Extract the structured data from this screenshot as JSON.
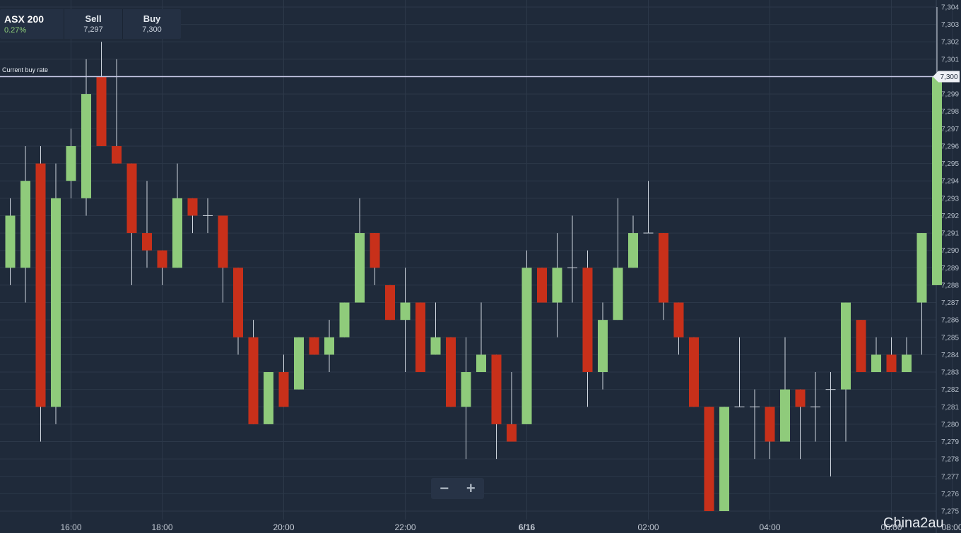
{
  "quote": {
    "instrument": "ASX 200",
    "change": "0.27%",
    "sell_label": "Sell",
    "sell_value": "7,297",
    "buy_label": "Buy",
    "buy_value": "7,300"
  },
  "current_rate": {
    "label": "Current buy rate",
    "value": 7300,
    "badge": "7,300"
  },
  "zoom": {
    "minus": "−",
    "plus": "+"
  },
  "watermark": "China2au",
  "colors": {
    "background": "#1f2a3a",
    "up": "#8fcb7b",
    "down": "#c8301a",
    "wick": "#cfd6df",
    "rate_line": "#c7c9e6"
  },
  "chart_data": {
    "type": "candlestick",
    "title": "",
    "xlabel": "",
    "ylabel": "",
    "grid": true,
    "ylim": [
      7275,
      7304
    ],
    "ytick_step": 1,
    "x_labels": [
      {
        "text": "16:00",
        "index": 2,
        "bold": false
      },
      {
        "text": "18:00",
        "index": 8,
        "bold": false
      },
      {
        "text": "20:00",
        "index": 16,
        "bold": false
      },
      {
        "text": "22:00",
        "index": 24,
        "bold": false
      },
      {
        "text": "6/16",
        "index": 32,
        "bold": true
      },
      {
        "text": "02:00",
        "index": 40,
        "bold": false
      },
      {
        "text": "04:00",
        "index": 48,
        "bold": false
      },
      {
        "text": "06:00",
        "index": 56,
        "bold": false
      },
      {
        "text": "08:00",
        "index": 60,
        "bold": false
      }
    ],
    "candles": [
      {
        "o": 7289,
        "h": 7293,
        "l": 7288,
        "c": 7292
      },
      {
        "o": 7289,
        "h": 7296,
        "l": 7287,
        "c": 7294
      },
      {
        "o": 7295,
        "h": 7296,
        "l": 7279,
        "c": 7281
      },
      {
        "o": 7281,
        "h": 7295,
        "l": 7280,
        "c": 7293
      },
      {
        "o": 7294,
        "h": 7297,
        "l": 7293,
        "c": 7296
      },
      {
        "o": 7293,
        "h": 7301,
        "l": 7292,
        "c": 7299
      },
      {
        "o": 7300,
        "h": 7302,
        "l": 7296,
        "c": 7296
      },
      {
        "o": 7296,
        "h": 7301,
        "l": 7295,
        "c": 7295
      },
      {
        "o": 7295,
        "h": 7295,
        "l": 7288,
        "c": 7291
      },
      {
        "o": 7291,
        "h": 7294,
        "l": 7289,
        "c": 7290
      },
      {
        "o": 7290,
        "h": 7290,
        "l": 7288,
        "c": 7289
      },
      {
        "o": 7289,
        "h": 7295,
        "l": 7289,
        "c": 7293
      },
      {
        "o": 7293,
        "h": 7293,
        "l": 7291,
        "c": 7292
      },
      {
        "o": 7292,
        "h": 7293,
        "l": 7291,
        "c": 7292
      },
      {
        "o": 7292,
        "h": 7292,
        "l": 7287,
        "c": 7289
      },
      {
        "o": 7289,
        "h": 7289,
        "l": 7284,
        "c": 7285
      },
      {
        "o": 7285,
        "h": 7286,
        "l": 7280,
        "c": 7280
      },
      {
        "o": 7280,
        "h": 7283,
        "l": 7280,
        "c": 7283
      },
      {
        "o": 7283,
        "h": 7284,
        "l": 7281,
        "c": 7281
      },
      {
        "o": 7282,
        "h": 7285,
        "l": 7282,
        "c": 7285
      },
      {
        "o": 7285,
        "h": 7285,
        "l": 7284,
        "c": 7284
      },
      {
        "o": 7284,
        "h": 7286,
        "l": 7283,
        "c": 7285
      },
      {
        "o": 7285,
        "h": 7287,
        "l": 7285,
        "c": 7287
      },
      {
        "o": 7287,
        "h": 7293,
        "l": 7287,
        "c": 7291
      },
      {
        "o": 7291,
        "h": 7291,
        "l": 7288,
        "c": 7289
      },
      {
        "o": 7288,
        "h": 7288,
        "l": 7286,
        "c": 7286
      },
      {
        "o": 7286,
        "h": 7289,
        "l": 7283,
        "c": 7287
      },
      {
        "o": 7287,
        "h": 7287,
        "l": 7283,
        "c": 7283
      },
      {
        "o": 7284,
        "h": 7287,
        "l": 7284,
        "c": 7285
      },
      {
        "o": 7285,
        "h": 7285,
        "l": 7281,
        "c": 7281
      },
      {
        "o": 7281,
        "h": 7285,
        "l": 7278,
        "c": 7283
      },
      {
        "o": 7283,
        "h": 7287,
        "l": 7283,
        "c": 7284
      },
      {
        "o": 7284,
        "h": 7284,
        "l": 7278,
        "c": 7280
      },
      {
        "o": 7280,
        "h": 7283,
        "l": 7279,
        "c": 7279
      },
      {
        "o": 7280,
        "h": 7290,
        "l": 7280,
        "c": 7289
      },
      {
        "o": 7289,
        "h": 7289,
        "l": 7287,
        "c": 7287
      },
      {
        "o": 7287,
        "h": 7291,
        "l": 7285,
        "c": 7289
      },
      {
        "o": 7289,
        "h": 7292,
        "l": 7287,
        "c": 7289
      },
      {
        "o": 7289,
        "h": 7290,
        "l": 7281,
        "c": 7283
      },
      {
        "o": 7283,
        "h": 7287,
        "l": 7282,
        "c": 7286
      },
      {
        "o": 7286,
        "h": 7293,
        "l": 7286,
        "c": 7289
      },
      {
        "o": 7289,
        "h": 7292,
        "l": 7289,
        "c": 7291
      },
      {
        "o": 7291,
        "h": 7294,
        "l": 7291,
        "c": 7291
      },
      {
        "o": 7291,
        "h": 7291,
        "l": 7286,
        "c": 7287
      },
      {
        "o": 7287,
        "h": 7287,
        "l": 7284,
        "c": 7285
      },
      {
        "o": 7285,
        "h": 7285,
        "l": 7281,
        "c": 7281
      },
      {
        "o": 7281,
        "h": 7281,
        "l": 7275,
        "c": 7275
      },
      {
        "o": 7275,
        "h": 7281,
        "l": 7275,
        "c": 7281
      },
      {
        "o": 7281,
        "h": 7285,
        "l": 7281,
        "c": 7281
      },
      {
        "o": 7281,
        "h": 7282,
        "l": 7278,
        "c": 7281
      },
      {
        "o": 7281,
        "h": 7281,
        "l": 7278,
        "c": 7279
      },
      {
        "o": 7279,
        "h": 7285,
        "l": 7279,
        "c": 7282
      },
      {
        "o": 7282,
        "h": 7282,
        "l": 7278,
        "c": 7281
      },
      {
        "o": 7281,
        "h": 7283,
        "l": 7279,
        "c": 7281
      },
      {
        "o": 7282,
        "h": 7283,
        "l": 7277,
        "c": 7282
      },
      {
        "o": 7282,
        "h": 7287,
        "l": 7279,
        "c": 7287
      },
      {
        "o": 7286,
        "h": 7286,
        "l": 7283,
        "c": 7283
      },
      {
        "o": 7283,
        "h": 7285,
        "l": 7283,
        "c": 7284
      },
      {
        "o": 7284,
        "h": 7285,
        "l": 7283,
        "c": 7283
      },
      {
        "o": 7283,
        "h": 7285,
        "l": 7283,
        "c": 7284
      },
      {
        "o": 7287,
        "h": 7291,
        "l": 7284,
        "c": 7291
      },
      {
        "o": 7288,
        "h": 7304,
        "l": 7288,
        "c": 7300
      }
    ]
  }
}
